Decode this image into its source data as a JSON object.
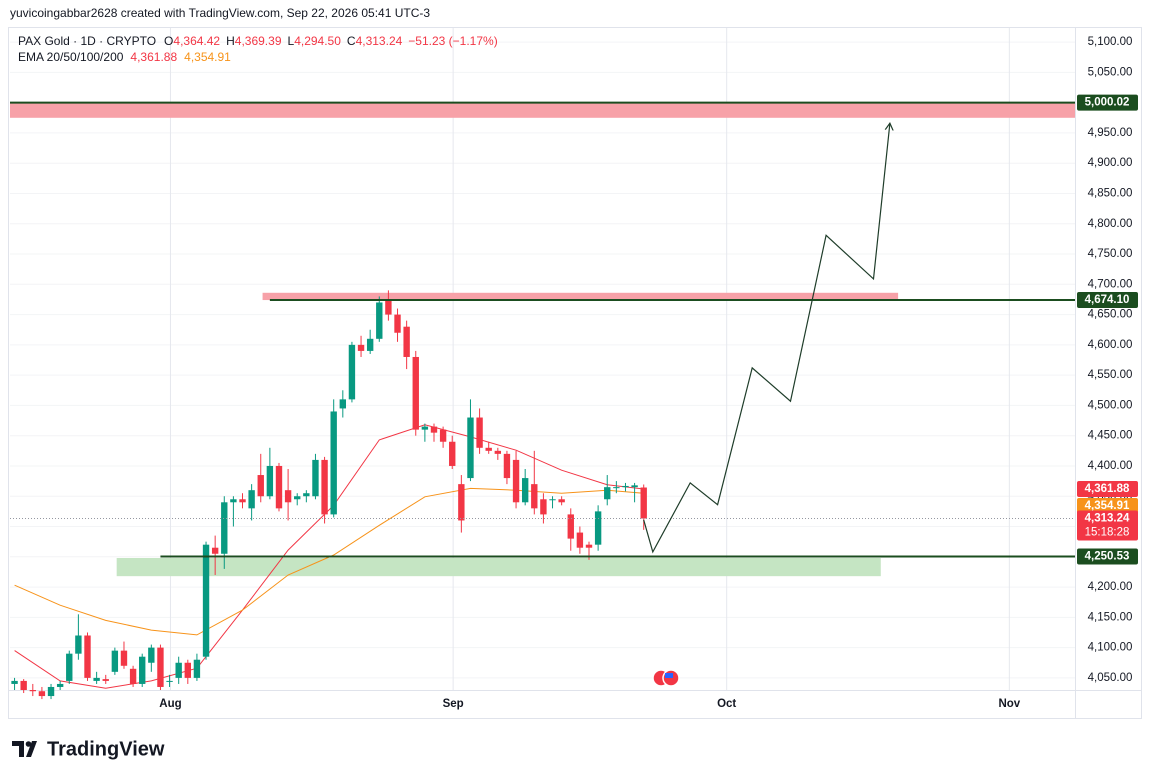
{
  "chart_data": {
    "type": "candlestick",
    "caption": "yuvicoingabbar2628 created with TradingView.com, Sep 22, 2026 05:41 UTC-3",
    "symbol": "PAX Gold · 1D · CRYPTO",
    "ohlc_legend": [
      {
        "key": "O",
        "label": "4,364.42"
      },
      {
        "key": "H",
        "label": "4,369.39"
      },
      {
        "key": "L",
        "label": "4,294.50"
      },
      {
        "key": "C",
        "label": "4,313.24"
      }
    ],
    "change": "−51.23 (−1.17%)",
    "indicator": "EMA 20/50/100/200",
    "branding": "TradingView",
    "up_color": "#089981",
    "down_color": "#f23645",
    "open": [
      4040,
      4045,
      4030,
      4028,
      4020,
      4035,
      4045,
      4090,
      4120,
      4045,
      4048,
      4060,
      4095,
      4065,
      4040,
      4075,
      4100,
      4045,
      4050,
      4075,
      4050,
      4085,
      4265,
      4255,
      4340,
      4345,
      4330,
      4385,
      4350,
      4400,
      4360,
      4345,
      4350,
      4350,
      4410,
      4320,
      4495,
      4510,
      4600,
      4590,
      4610,
      4675,
      4650,
      4630,
      4580,
      4460,
      4465,
      4460,
      4440,
      4370,
      4380,
      4480,
      4430,
      4425,
      4420,
      4410,
      4340,
      4370,
      4345,
      4345,
      4345,
      4320,
      4290,
      4270,
      4270,
      4345,
      4365,
      4365,
      4365,
      4364.42
    ],
    "high": [
      4050,
      4048,
      4040,
      4035,
      4040,
      4045,
      4095,
      4155,
      4125,
      4060,
      4055,
      4100,
      4110,
      4070,
      4090,
      4105,
      4105,
      4055,
      4085,
      4080,
      4090,
      4275,
      4285,
      4350,
      4350,
      4355,
      4370,
      4420,
      4430,
      4405,
      4395,
      4355,
      4360,
      4420,
      4415,
      4510,
      4525,
      4605,
      4615,
      4625,
      4680,
      4690,
      4660,
      4640,
      4590,
      4470,
      4470,
      4465,
      4450,
      4385,
      4510,
      4495,
      4440,
      4430,
      4425,
      4425,
      4395,
      4425,
      4355,
      4350,
      4350,
      4330,
      4300,
      4275,
      4335,
      4385,
      4375,
      4372,
      4372,
      4369.39
    ],
    "low": [
      4030,
      4025,
      4020,
      4015,
      4015,
      4030,
      4040,
      4080,
      4045,
      4040,
      4040,
      4055,
      4065,
      4035,
      4035,
      4060,
      4030,
      4035,
      4040,
      4040,
      4045,
      4080,
      4220,
      4230,
      4300,
      4330,
      4310,
      4340,
      4345,
      4325,
      4310,
      4335,
      4340,
      4345,
      4305,
      4315,
      4480,
      4505,
      4580,
      4585,
      4605,
      4640,
      4605,
      4560,
      4450,
      4440,
      4440,
      4430,
      4395,
      4290,
      4375,
      4420,
      4420,
      4410,
      4370,
      4330,
      4335,
      4320,
      4305,
      4330,
      4335,
      4260,
      4255,
      4245,
      4260,
      4335,
      4355,
      4358,
      4340,
      4294.5
    ],
    "close": [
      4045,
      4030,
      4028,
      4020,
      4035,
      4040,
      4090,
      4120,
      4050,
      4050,
      4045,
      4095,
      4070,
      4040,
      4085,
      4100,
      4035,
      4045,
      4075,
      4050,
      4080,
      4270,
      4255,
      4340,
      4345,
      4340,
      4360,
      4350,
      4400,
      4330,
      4340,
      4350,
      4355,
      4410,
      4320,
      4490,
      4510,
      4600,
      4590,
      4610,
      4670,
      4650,
      4620,
      4580,
      4460,
      4465,
      4455,
      4440,
      4400,
      4310,
      4480,
      4430,
      4425,
      4420,
      4380,
      4340,
      4380,
      4330,
      4320,
      4345,
      4340,
      4280,
      4265,
      4265,
      4325,
      4365,
      4365,
      4367,
      4368,
      4313.24
    ],
    "ema": [
      {
        "color": "#f23645",
        "value": 4361.88,
        "value_label": "4,361.88",
        "x": [
          0,
          5,
          10,
          15,
          20,
          25,
          30,
          35,
          40,
          45,
          50,
          55,
          60,
          65,
          69
        ],
        "values": [
          4095,
          4045,
          4033,
          4045,
          4066,
          4162,
          4261,
          4335,
          4443,
          4468,
          4448,
          4426,
          4393,
          4369,
          4361.88
        ]
      },
      {
        "color": "#f7931a",
        "value": 4354.91,
        "value_label": "4,354.91",
        "x": [
          0,
          5,
          10,
          15,
          20,
          25,
          30,
          35,
          40,
          45,
          50,
          55,
          60,
          65,
          69
        ],
        "values": [
          4203,
          4170,
          4145,
          4129,
          4121,
          4162,
          4220,
          4253,
          4302,
          4349,
          4363,
          4360,
          4355,
          4360,
          4354.91
        ]
      }
    ],
    "zones": [
      {
        "top": 5000,
        "bottom": 4975,
        "from": -0.5,
        "to": 116.3,
        "color": "#f7a1a8"
      },
      {
        "top": 4686,
        "bottom": 4674,
        "from": 27.2,
        "to": 96.9,
        "color": "#f7a1a8"
      },
      {
        "top": 4248,
        "bottom": 4218,
        "from": 11.2,
        "to": 95,
        "color": "#c5e5c3"
      }
    ],
    "levels": [
      {
        "value": 5000.02,
        "label": "5,000.02",
        "from": -0.5,
        "color": "#1b4d1f"
      },
      {
        "value": 4674.1,
        "label": "4,674.10",
        "from": 28,
        "color": "#1b4d1f"
      },
      {
        "value": 4250.53,
        "label": "4,250.53",
        "from": 16,
        "color": "#1b4d1f"
      }
    ],
    "last_price": {
      "value": 4313.24,
      "label": "4,313.24",
      "countdown": "15:18:28",
      "color": "#f23645"
    },
    "projection": {
      "color": "#1f3d2a",
      "x": [
        69,
        70,
        74.1,
        77.1,
        80.9,
        85.1,
        89,
        94.2,
        96
      ],
      "values": [
        4311,
        4258,
        4372,
        4336,
        4562,
        4507,
        4781,
        4709,
        4966
      ]
    },
    "xlim": [
      -0.5,
      116.3
    ],
    "xticks": [
      {
        "value": 17.1,
        "label": "Aug"
      },
      {
        "value": 48.1,
        "label": "Sep"
      },
      {
        "value": 78.1,
        "label": "Oct"
      },
      {
        "value": 109.1,
        "label": "Nov"
      }
    ],
    "ylim": [
      4030,
      5120
    ],
    "yticks": [
      {
        "value": 4050,
        "label": "4,050.00"
      },
      {
        "value": 4100,
        "label": "4,100.00"
      },
      {
        "value": 4150,
        "label": "4,150.00"
      },
      {
        "value": 4200,
        "label": "4,200.00"
      },
      {
        "value": 4250,
        "label": "4,250.00"
      },
      {
        "value": 4300,
        "label": "4,300.00"
      },
      {
        "value": 4350,
        "label": "4,350.00"
      },
      {
        "value": 4400,
        "label": "4,400.00"
      },
      {
        "value": 4450,
        "label": "4,450.00"
      },
      {
        "value": 4500,
        "label": "4,500.00"
      },
      {
        "value": 4550,
        "label": "4,550.00"
      },
      {
        "value": 4600,
        "label": "4,600.00"
      },
      {
        "value": 4650,
        "label": "4,650.00"
      },
      {
        "value": 4700,
        "label": "4,700.00"
      },
      {
        "value": 4750,
        "label": "4,750.00"
      },
      {
        "value": 4800,
        "label": "4,800.00"
      },
      {
        "value": 4850,
        "label": "4,850.00"
      },
      {
        "value": 4900,
        "label": "4,900.00"
      },
      {
        "value": 4950,
        "label": "4,950.00"
      },
      {
        "value": 5000,
        "label": "5,000.00"
      },
      {
        "value": 5050,
        "label": "5,050.00"
      },
      {
        "value": 5100,
        "label": "5,100.00"
      }
    ],
    "grid": true
  }
}
